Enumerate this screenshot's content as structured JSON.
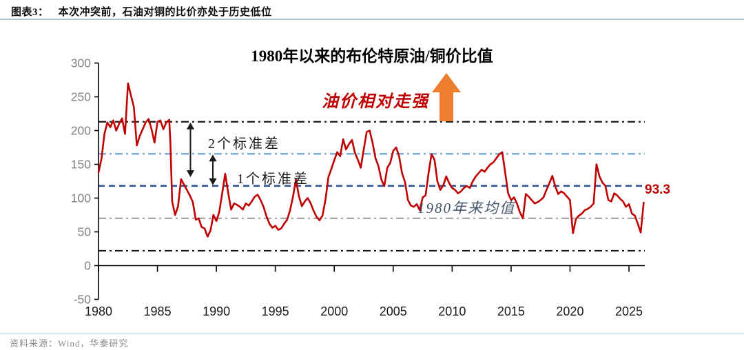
{
  "header": {
    "label": "图表3：",
    "title": "本次冲突前，石油对铜的比价亦处于历史低位"
  },
  "source": "资料来源：Wind，华泰研究",
  "colors": {
    "series": "#c00000",
    "trend_arrow": "#ed7d31",
    "ref_black": "#1a1a1a",
    "ref_light_blue": "#5b9bd5",
    "ref_dark_blue": "#2f5597",
    "ref_gray": "#a6a6a6",
    "axis": "#000000",
    "y_tick_label": "#808080",
    "x_tick_label": "#1a1a1a"
  },
  "chart_data": {
    "type": "line",
    "title": "1980年以来的布伦特原油/铜价比值",
    "xlabel": "",
    "ylabel": "",
    "xlim": [
      1979.6,
      2026.8
    ],
    "ylim": [
      -50,
      300
    ],
    "yticks": [
      300,
      250,
      200,
      150,
      100,
      50,
      0,
      -50
    ],
    "xticks": [
      1980,
      1985,
      1990,
      1995,
      2000,
      2005,
      2010,
      2015,
      2020,
      2025
    ],
    "grid": false,
    "legend": "none",
    "annotations": {
      "trend": "油价相对走强",
      "last_value": "93.3"
    },
    "reference_lines": [
      {
        "value": 213,
        "style": "dashdot",
        "color": "#1a1a1a",
        "label": ""
      },
      {
        "value": 165.5,
        "style": "dashdot",
        "color": "#5b9bd5",
        "label": "2个标准差"
      },
      {
        "value": 118,
        "style": "dashed",
        "color": "#2f5597",
        "label": "1个标准差"
      },
      {
        "value": 70,
        "style": "dashdot",
        "color": "#a6a6a6",
        "label": "1980年来均值"
      },
      {
        "value": 22,
        "style": "dashdot",
        "color": "#1a1a1a",
        "label": ""
      }
    ],
    "range_arrows": [
      {
        "x": 1987.8,
        "from": 213,
        "to": 130
      },
      {
        "x": 1989.7,
        "from": 165.5,
        "to": 118
      }
    ],
    "series": [
      {
        "name": "布伦特原油/铜价比值",
        "color": "#c00000",
        "last_value": 93.3,
        "x": [
          1980.0,
          1980.25,
          1980.5,
          1980.75,
          1981.0,
          1981.25,
          1981.5,
          1981.75,
          1982.0,
          1982.25,
          1982.5,
          1982.75,
          1983.0,
          1983.25,
          1983.5,
          1983.75,
          1984.0,
          1984.25,
          1984.5,
          1984.75,
          1985.0,
          1985.25,
          1985.5,
          1985.75,
          1986.0,
          1986.1,
          1986.25,
          1986.5,
          1986.75,
          1987.0,
          1987.25,
          1987.5,
          1987.75,
          1988.0,
          1988.25,
          1988.5,
          1988.75,
          1989.0,
          1989.25,
          1989.5,
          1989.75,
          1990.0,
          1990.25,
          1990.5,
          1990.75,
          1991.0,
          1991.25,
          1991.5,
          1991.75,
          1992.0,
          1992.25,
          1992.5,
          1992.75,
          1993.0,
          1993.25,
          1993.5,
          1993.75,
          1994.0,
          1994.25,
          1994.5,
          1994.75,
          1995.0,
          1995.25,
          1995.5,
          1995.75,
          1996.0,
          1996.25,
          1996.5,
          1996.75,
          1997.0,
          1997.25,
          1997.5,
          1997.75,
          1998.0,
          1998.25,
          1998.5,
          1998.75,
          1999.0,
          1999.25,
          1999.5,
          1999.75,
          2000.0,
          2000.25,
          2000.5,
          2000.75,
          2001.0,
          2001.25,
          2001.5,
          2001.75,
          2002.0,
          2002.25,
          2002.5,
          2002.75,
          2003.0,
          2003.25,
          2003.5,
          2003.75,
          2004.0,
          2004.25,
          2004.5,
          2004.75,
          2005.0,
          2005.25,
          2005.5,
          2005.75,
          2006.0,
          2006.25,
          2006.5,
          2006.75,
          2007.0,
          2007.25,
          2007.5,
          2007.75,
          2008.0,
          2008.25,
          2008.5,
          2008.75,
          2009.0,
          2009.25,
          2009.5,
          2009.75,
          2010.0,
          2010.25,
          2010.5,
          2010.75,
          2011.0,
          2011.25,
          2011.5,
          2011.75,
          2012.0,
          2012.25,
          2012.5,
          2012.75,
          2013.0,
          2013.25,
          2013.5,
          2013.75,
          2014.0,
          2014.25,
          2014.5,
          2014.75,
          2015.0,
          2015.25,
          2015.5,
          2015.75,
          2016.0,
          2016.25,
          2016.5,
          2016.75,
          2017.0,
          2017.25,
          2017.5,
          2017.75,
          2018.0,
          2018.25,
          2018.5,
          2018.75,
          2019.0,
          2019.25,
          2019.5,
          2019.75,
          2020.0,
          2020.25,
          2020.5,
          2020.75,
          2021.0,
          2021.25,
          2021.5,
          2021.75,
          2022.0,
          2022.25,
          2022.5,
          2022.75,
          2023.0,
          2023.25,
          2023.5,
          2023.75,
          2024.0,
          2024.25,
          2024.5,
          2024.75,
          2025.0,
          2025.25,
          2025.5,
          2025.75,
          2026.0,
          2026.25
        ],
        "values": [
          138,
          158,
          195,
          212,
          205,
          215,
          200,
          210,
          218,
          195,
          270,
          252,
          235,
          178,
          192,
          202,
          212,
          217,
          202,
          182,
          213,
          215,
          202,
          212,
          216,
          180,
          95,
          75,
          88,
          128,
          120,
          112,
          104,
          94,
          68,
          70,
          57,
          55,
          43,
          52,
          75,
          66,
          80,
          108,
          136,
          108,
          83,
          92,
          90,
          87,
          83,
          92,
          89,
          95,
          102,
          105,
          97,
          87,
          73,
          62,
          56,
          59,
          53,
          55,
          62,
          68,
          82,
          102,
          128,
          103,
          88,
          95,
          100,
          92,
          81,
          72,
          67,
          74,
          97,
          131,
          143,
          156,
          168,
          162,
          187,
          172,
          180,
          186,
          167,
          157,
          145,
          172,
          198,
          200,
          182,
          159,
          147,
          127,
          118,
          145,
          152,
          170,
          175,
          162,
          137,
          124,
          97,
          89,
          87,
          91,
          82,
          101,
          104,
          137,
          165,
          157,
          125,
          112,
          119,
          132,
          122,
          115,
          112,
          107,
          110,
          115,
          118,
          115,
          125,
          132,
          137,
          142,
          139,
          145,
          150,
          153,
          159,
          165,
          168,
          138,
          107,
          97,
          101,
          92,
          79,
          70,
          106,
          102,
          97,
          92,
          94,
          97,
          101,
          112,
          122,
          133,
          117,
          106,
          110,
          107,
          102,
          97,
          48,
          69,
          74,
          77,
          82,
          84,
          87,
          92,
          150,
          132,
          123,
          118,
          97,
          95,
          107,
          104,
          99,
          95,
          87,
          91,
          77,
          74,
          62,
          49,
          93.3
        ]
      }
    ]
  }
}
